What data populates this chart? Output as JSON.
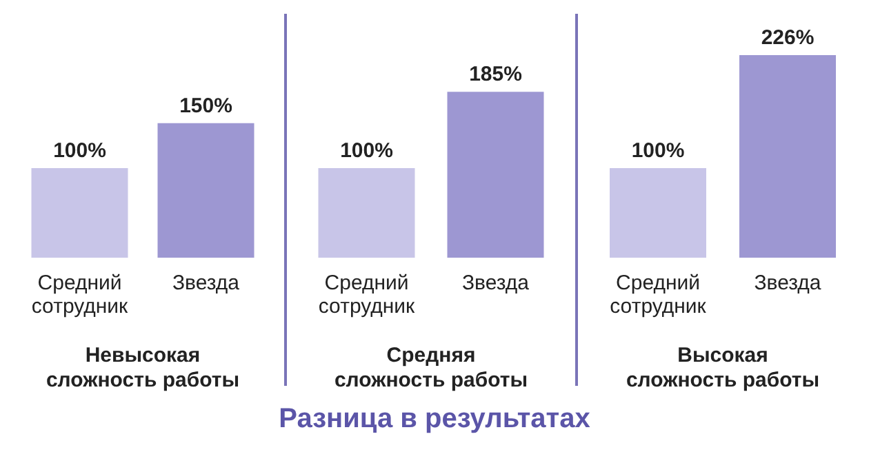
{
  "chart_data": [
    {
      "type": "bar",
      "categories": [
        "Средний сотрудник",
        "Звезда"
      ],
      "values": [
        100,
        150
      ],
      "value_labels": [
        "100%",
        "150%"
      ],
      "colors": [
        "#c8c5e8",
        "#9d97d2"
      ],
      "xlabel": "Невысокая сложность работы"
    },
    {
      "type": "bar",
      "categories": [
        "Средний сотрудник",
        "Звезда"
      ],
      "values": [
        100,
        185
      ],
      "value_labels": [
        "100%",
        "185%"
      ],
      "colors": [
        "#c8c5e8",
        "#9d97d2"
      ],
      "xlabel": "Средняя сложность работы",
      "title": "Разница в результатах"
    },
    {
      "type": "bar",
      "categories": [
        "Средний сотрудник",
        "Звезда"
      ],
      "values": [
        100,
        226
      ],
      "value_labels": [
        "100%",
        "226%"
      ],
      "colors": [
        "#c8c5e8",
        "#9d97d2"
      ],
      "xlabel": "Высокая сложность работы"
    }
  ]
}
